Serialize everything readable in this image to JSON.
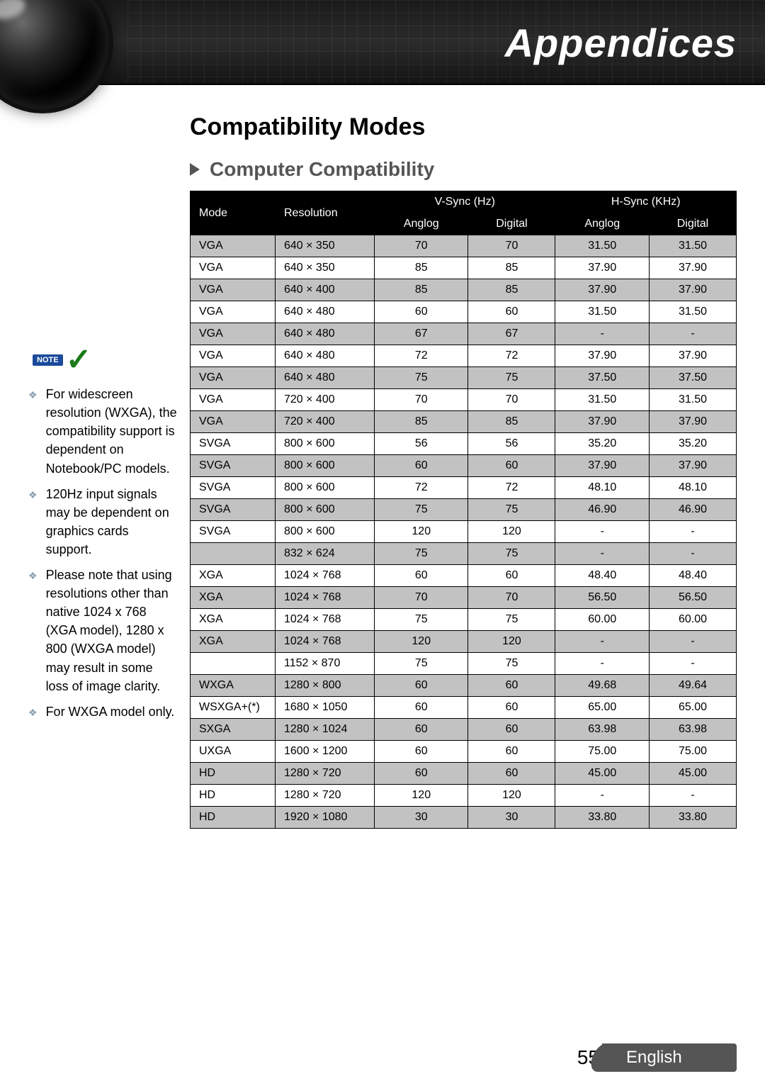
{
  "header": {
    "title": "Appendices"
  },
  "section": {
    "title": "Compatibility Modes",
    "subtitle": "Computer Compatibility"
  },
  "notes": {
    "badge": "NOTE",
    "items": [
      "For widescreen resolution (WXGA), the compatibility support is dependent on Notebook/PC models.",
      "120Hz input signals may be dependent on graphics cards support.",
      "Please note that using resolutions other than native 1024 x 768 (XGA model), 1280 x 800 (WXGA model) may result in some loss of image clarity.",
      "For WXGA model only."
    ]
  },
  "table": {
    "head": {
      "mode": "Mode",
      "resolution": "Resolution",
      "vsync": "V-Sync (Hz)",
      "hsync": "H-Sync (KHz)",
      "analog": "Anglog",
      "digital": "Digital"
    },
    "rows": [
      [
        "VGA",
        "640 × 350",
        "70",
        "70",
        "31.50",
        "31.50"
      ],
      [
        "VGA",
        "640 × 350",
        "85",
        "85",
        "37.90",
        "37.90"
      ],
      [
        "VGA",
        "640 × 400",
        "85",
        "85",
        "37.90",
        "37.90"
      ],
      [
        "VGA",
        "640 × 480",
        "60",
        "60",
        "31.50",
        "31.50"
      ],
      [
        "VGA",
        "640 × 480",
        "67",
        "67",
        "-",
        "-"
      ],
      [
        "VGA",
        "640 × 480",
        "72",
        "72",
        "37.90",
        "37.90"
      ],
      [
        "VGA",
        "640 × 480",
        "75",
        "75",
        "37.50",
        "37.50"
      ],
      [
        "VGA",
        "720 × 400",
        "70",
        "70",
        "31.50",
        "31.50"
      ],
      [
        "VGA",
        "720 × 400",
        "85",
        "85",
        "37.90",
        "37.90"
      ],
      [
        "SVGA",
        "800 × 600",
        "56",
        "56",
        "35.20",
        "35.20"
      ],
      [
        "SVGA",
        "800 × 600",
        "60",
        "60",
        "37.90",
        "37.90"
      ],
      [
        "SVGA",
        "800 × 600",
        "72",
        "72",
        "48.10",
        "48.10"
      ],
      [
        "SVGA",
        "800 × 600",
        "75",
        "75",
        "46.90",
        "46.90"
      ],
      [
        "SVGA",
        "800 × 600",
        "120",
        "120",
        "-",
        "-"
      ],
      [
        "",
        "832 × 624",
        "75",
        "75",
        "-",
        "-"
      ],
      [
        "XGA",
        "1024 × 768",
        "60",
        "60",
        "48.40",
        "48.40"
      ],
      [
        "XGA",
        "1024 × 768",
        "70",
        "70",
        "56.50",
        "56.50"
      ],
      [
        "XGA",
        "1024 × 768",
        "75",
        "75",
        "60.00",
        "60.00"
      ],
      [
        "XGA",
        "1024 × 768",
        "120",
        "120",
        "-",
        "-"
      ],
      [
        "",
        "1152 × 870",
        "75",
        "75",
        "-",
        "-"
      ],
      [
        "WXGA",
        "1280 × 800",
        "60",
        "60",
        "49.68",
        "49.64"
      ],
      [
        "WSXGA+(*)",
        "1680 × 1050",
        "60",
        "60",
        "65.00",
        "65.00"
      ],
      [
        "SXGA",
        "1280 × 1024",
        "60",
        "60",
        "63.98",
        "63.98"
      ],
      [
        "UXGA",
        "1600 × 1200",
        "60",
        "60",
        "75.00",
        "75.00"
      ],
      [
        "HD",
        "1280 × 720",
        "60",
        "60",
        "45.00",
        "45.00"
      ],
      [
        "HD",
        "1280 × 720",
        "120",
        "120",
        "-",
        "-"
      ],
      [
        "HD",
        "1920 × 1080",
        "30",
        "30",
        "33.80",
        "33.80"
      ]
    ]
  },
  "footer": {
    "page": "55",
    "language": "English"
  },
  "styling": {
    "colors": {
      "header_bg": "#1a1a1a",
      "header_text": "#ffffff",
      "table_header_bg": "#000000",
      "table_header_text": "#ffffff",
      "row_odd_bg": "#c2c2c2",
      "row_even_bg": "#ffffff",
      "border": "#000000",
      "subtitle_text": "#555555",
      "note_badge_bg": "#1b4a9c",
      "footer_shape_bg": "#555555",
      "bullet_color": "#8a9db0"
    },
    "fonts": {
      "header_title_size": 56,
      "section_title_size": 34,
      "subsection_size": 28,
      "table_size": 16,
      "note_size": 18,
      "footer_size": 24
    }
  }
}
